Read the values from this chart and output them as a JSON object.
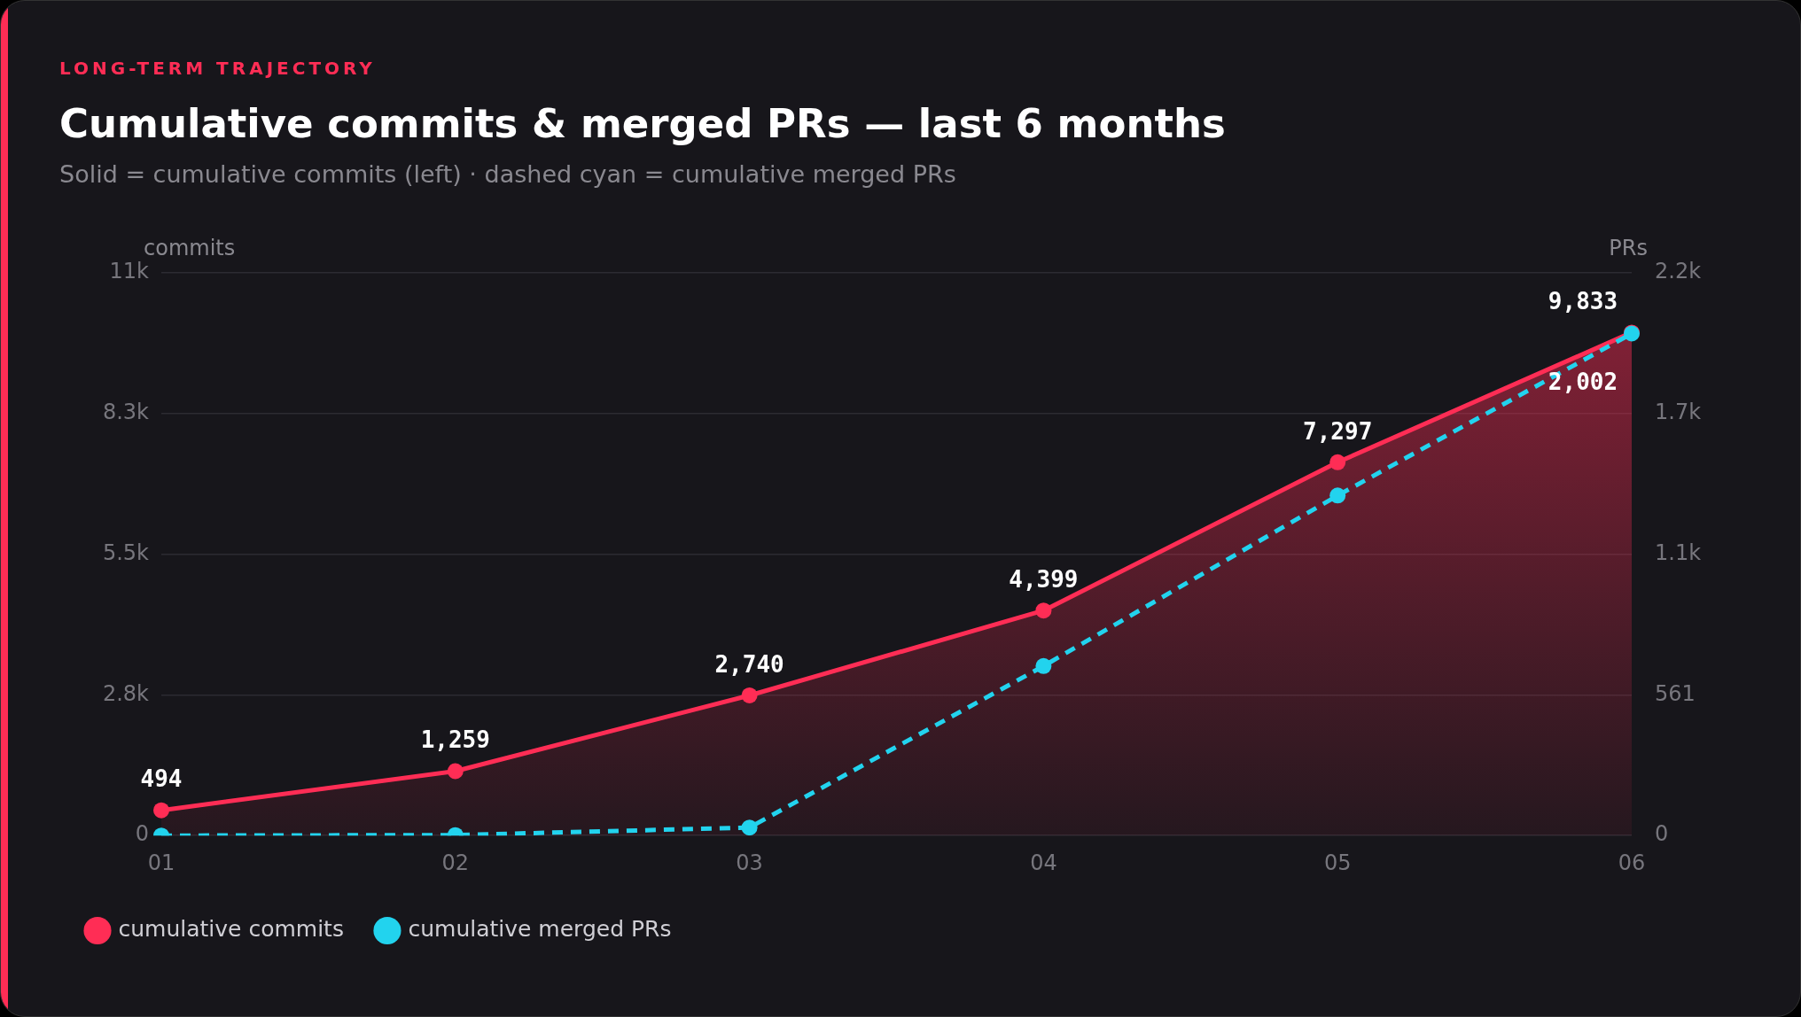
{
  "chart_data": {
    "type": "line",
    "title": "Cumulative commits & merged PRs — last 6 months",
    "subtitle": "Solid = cumulative commits (left) · dashed cyan = cumulative merged PRs",
    "annotations": [
      "LONG-TERM TRAJECTORY"
    ],
    "ylabel": "commits",
    "y2label": "PRs",
    "categories": [
      "01",
      "02",
      "03",
      "04",
      "05",
      "06"
    ],
    "series": [
      {
        "name": "cumulative commits",
        "type": "area",
        "color": "#ff2d55",
        "line_style": "solid",
        "values": [
          494,
          1259,
          2740,
          4399,
          7297,
          9833
        ],
        "value_labels": [
          "494",
          "1,259",
          "2,740",
          "4,399",
          "7,297",
          "9,833"
        ]
      },
      {
        "name": "cumulative merged PRs",
        "type": "line",
        "axis": "y2",
        "color": "#22d3ee",
        "line_style": "dashed",
        "values": [
          0,
          2,
          32,
          676,
          1356,
          2002
        ],
        "value_labels": [
          null,
          null,
          null,
          null,
          null,
          "2,002"
        ]
      }
    ],
    "ylim": [
      0,
      11000
    ],
    "yticks": [
      0,
      {
        "value": 2750,
        "label": "2.8k"
      },
      {
        "value": 5500,
        "label": "5.5k"
      },
      {
        "value": 8250,
        "label": "8.3k"
      },
      {
        "value": 11000,
        "label": "11k"
      }
    ],
    "y2lim": [
      0,
      2244
    ],
    "y2ticks": [
      0,
      561,
      {
        "value": 1122,
        "label": "1.1k"
      },
      {
        "value": 1683,
        "label": "1.7k"
      },
      {
        "value": 2244,
        "label": "2.2k"
      }
    ],
    "grid": "y",
    "legend": "bottom left",
    "marker": "circle"
  }
}
